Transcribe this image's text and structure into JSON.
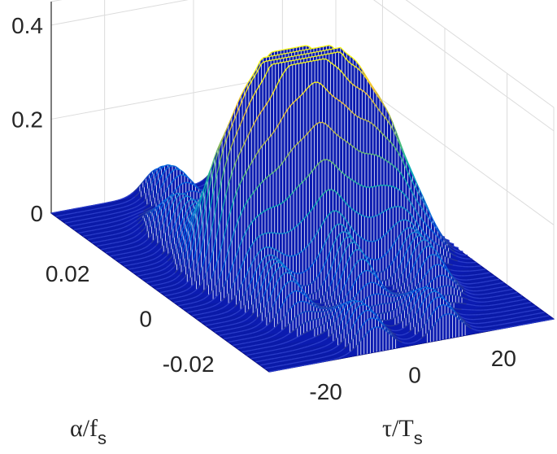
{
  "chart_data": {
    "type": "surface",
    "title": "",
    "xlabel": "α/f",
    "xlabel_sub": "s",
    "ylabel": "τ/T",
    "ylabel_sub": "s",
    "zlabel": "",
    "x_axis": {
      "quantity": "alpha/fs",
      "range": [
        -0.035,
        0.035
      ],
      "ticks": [
        "-0.02",
        "0",
        "0.02"
      ],
      "tick_values": [
        -0.02,
        0,
        0.02
      ]
    },
    "y_axis": {
      "quantity": "tau/Ts",
      "range": [
        -32,
        32
      ],
      "ticks": [
        "-20",
        "0",
        "20"
      ],
      "tick_values": [
        -20,
        0,
        20
      ]
    },
    "z_axis": {
      "range": [
        0,
        0.45
      ],
      "ticks": [
        "0",
        "0.2",
        "0.4"
      ],
      "tick_values": [
        0,
        0.2,
        0.4
      ]
    },
    "peaks": [
      {
        "alpha": 0.0,
        "tau": 0,
        "z": 0.42
      },
      {
        "alpha": 0.0,
        "tau": -6,
        "z": 0.38
      },
      {
        "alpha": 0.0,
        "tau": 6,
        "z": 0.36
      },
      {
        "alpha": 0.0,
        "tau": -12,
        "z": 0.3
      },
      {
        "alpha": 0.0,
        "tau": 12,
        "z": 0.31
      },
      {
        "alpha": 0.0,
        "tau": -18,
        "z": 0.22
      },
      {
        "alpha": 0.0,
        "tau": 18,
        "z": 0.24
      },
      {
        "alpha": 0.0,
        "tau": 24,
        "z": 0.12
      },
      {
        "alpha": 0.016,
        "tau": -16,
        "z": 0.1
      },
      {
        "alpha": 0.016,
        "tau": 0,
        "z": 0.12
      },
      {
        "alpha": 0.016,
        "tau": 16,
        "z": 0.1
      },
      {
        "alpha": -0.016,
        "tau": -16,
        "z": 0.1
      },
      {
        "alpha": -0.016,
        "tau": 0,
        "z": 0.12
      },
      {
        "alpha": -0.016,
        "tau": 16,
        "z": 0.1
      },
      {
        "alpha": 0.03,
        "tau": -8,
        "z": 0.08
      },
      {
        "alpha": 0.03,
        "tau": 8,
        "z": 0.08
      },
      {
        "alpha": -0.03,
        "tau": -8,
        "z": 0.08
      },
      {
        "alpha": -0.03,
        "tau": 8,
        "z": 0.08
      }
    ],
    "colormap": "parula",
    "grid": true
  }
}
